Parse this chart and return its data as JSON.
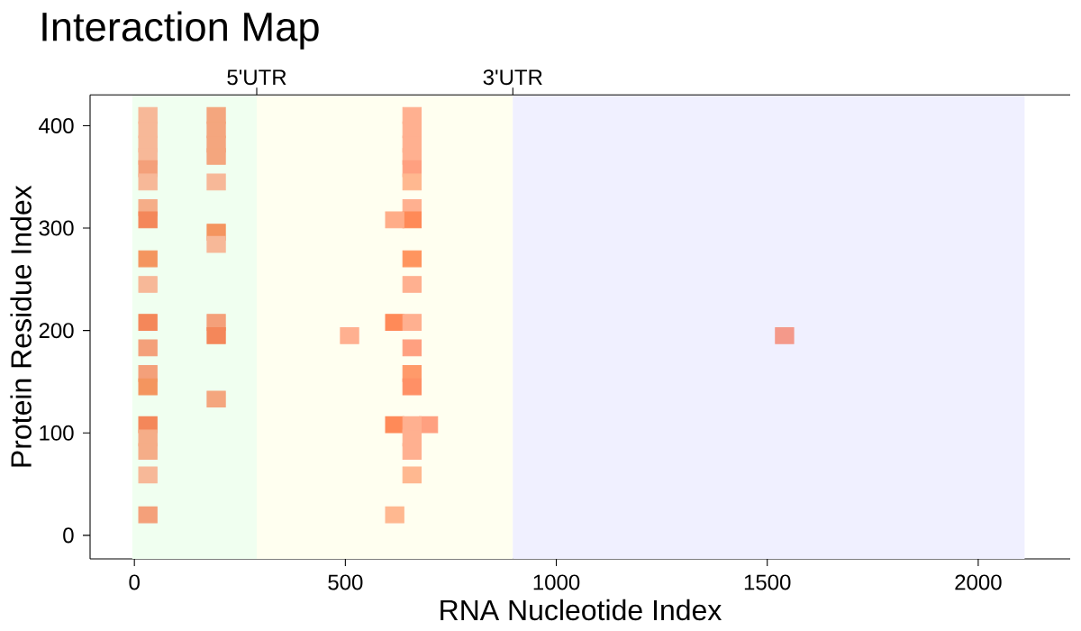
{
  "chart_data": {
    "type": "scatter",
    "title": "Interaction Map",
    "xlabel": "RNA Nucleotide Index",
    "ylabel": "Protein Residue Index",
    "marker": "square",
    "x": [
      32,
      32,
      32,
      32,
      32,
      32,
      32,
      32,
      32,
      32,
      32,
      32,
      32,
      32,
      32,
      32,
      32,
      32,
      32,
      194,
      194,
      194,
      194,
      194,
      194,
      194,
      194,
      194,
      194,
      658,
      658,
      658,
      658,
      658,
      658,
      658,
      658,
      617,
      658,
      617,
      658,
      510,
      658,
      658,
      658,
      658,
      617,
      697,
      658,
      658,
      658,
      658,
      617,
      1541
    ],
    "values": [
      410,
      396,
      382,
      370,
      358,
      345,
      320,
      308,
      270,
      245,
      208,
      183,
      158,
      145,
      108,
      95,
      82,
      59,
      20,
      410,
      396,
      382,
      370,
      345,
      296,
      284,
      208,
      195,
      133,
      410,
      396,
      382,
      370,
      358,
      345,
      320,
      308,
      308,
      270,
      208,
      208,
      195,
      245,
      183,
      158,
      145,
      108,
      108,
      108,
      95,
      82,
      59,
      20,
      195
    ],
    "colors": [
      "#f7b898",
      "#f7b898",
      "#f7b898",
      "#f7b898",
      "#f4a07a",
      "#f7b898",
      "#f5ad88",
      "#f4875a",
      "#f4955f",
      "#f7b898",
      "#f4875a",
      "#f4a07a",
      "#f4a07a",
      "#f4955f",
      "#f4875a",
      "#f5ad88",
      "#f5ad88",
      "#f7b898",
      "#f4a07a",
      "#f4a67e",
      "#f4a67e",
      "#f4a67e",
      "#f4a67e",
      "#f7b898",
      "#f4955f",
      "#f7b898",
      "#f4a07a",
      "#f4875a",
      "#f4a67e",
      "#ffb090",
      "#ffb090",
      "#ffb090",
      "#ffb090",
      "#ffa080",
      "#ffb890",
      "#ffb090",
      "#ff8a58",
      "#ffad88",
      "#ff955f",
      "#ff8a58",
      "#ffb090",
      "#ffb090",
      "#ffb090",
      "#ffa080",
      "#ff9a6a",
      "#ff9066",
      "#ff8a58",
      "#ffa080",
      "#ffb090",
      "#ffb090",
      "#ffb090",
      "#ffb890",
      "#ffb890",
      "#f4998a"
    ],
    "xlim": [
      -105,
      2218
    ],
    "ylim": [
      -23,
      430
    ],
    "xticks": [
      0,
      500,
      1000,
      1500,
      2000
    ],
    "yticks": [
      0,
      100,
      200,
      300,
      400
    ],
    "bands": [
      {
        "axis": "x",
        "from": -5,
        "to": 290,
        "color": "#f0fff0",
        "label": "5'UTR"
      },
      {
        "axis": "x",
        "from": 290,
        "to": 897,
        "color": "#fffff0",
        "label": "3'UTR"
      },
      {
        "axis": "x",
        "from": 897,
        "to": 2110,
        "color": "#f0f0ff"
      }
    ]
  }
}
